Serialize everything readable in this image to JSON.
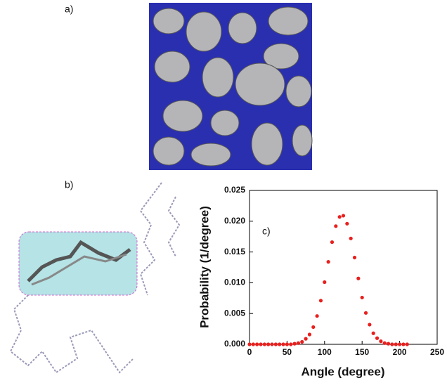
{
  "panel_labels": [
    "a)",
    "b)",
    "c)"
  ],
  "chart_data": {
    "type": "scatter",
    "x_label": "Angle (degree)",
    "y_label": "Probability (1/degree)",
    "color": "#e8201e",
    "x": [
      0,
      5,
      10,
      15,
      20,
      25,
      30,
      35,
      40,
      45,
      50,
      55,
      60,
      65,
      70,
      75,
      80,
      85,
      90,
      95,
      100,
      105,
      110,
      115,
      120,
      125,
      130,
      135,
      140,
      145,
      150,
      155,
      160,
      165,
      170,
      175,
      180,
      185,
      190,
      195,
      200,
      205,
      210
    ],
    "values": [
      0,
      0,
      0,
      0,
      0,
      0,
      0,
      0,
      0,
      0,
      0,
      0,
      0.0001,
      0.0002,
      0.0004,
      0.0009,
      0.0016,
      0.0028,
      0.0046,
      0.0071,
      0.0101,
      0.0134,
      0.0166,
      0.0192,
      0.0207,
      0.0209,
      0.0196,
      0.0172,
      0.0141,
      0.0107,
      0.0076,
      0.0051,
      0.0032,
      0.0018,
      0.001,
      0.0005,
      0.0002,
      0.0001,
      0,
      0,
      0,
      0,
      0
    ],
    "xlim": [
      0,
      250
    ],
    "xticks": [
      0,
      50,
      100,
      150,
      200,
      250
    ],
    "ylim": [
      0,
      0.025
    ],
    "yticks": [
      {
        "value": 0,
        "label": "0.000"
      },
      0.005,
      {
        "value": 0.01,
        "label": "0.010"
      },
      0.015,
      {
        "value": 0.02,
        "label": "0.020"
      },
      0.025
    ]
  }
}
